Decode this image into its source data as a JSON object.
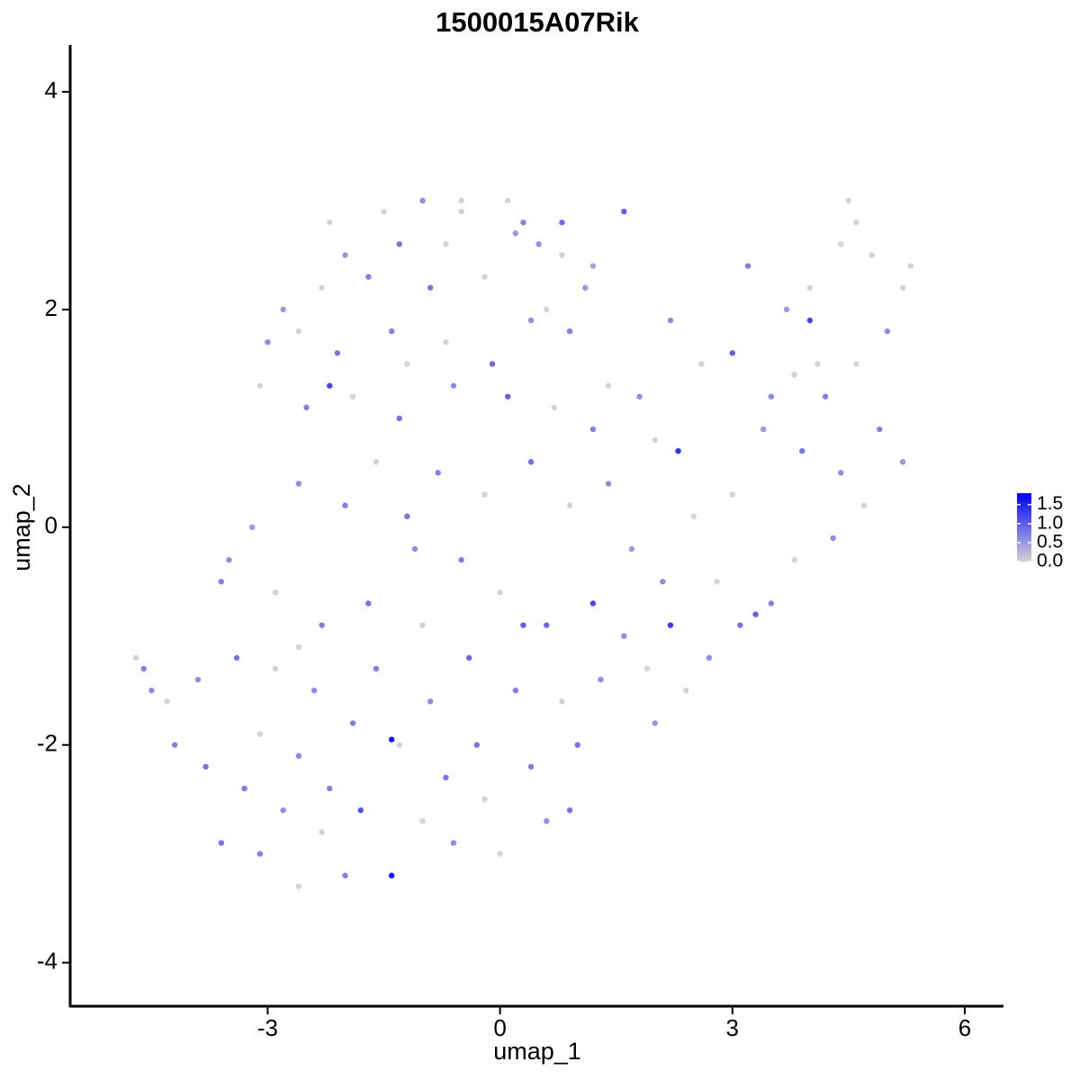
{
  "chart_data": {
    "type": "scatter",
    "title": "1500015A07Rik",
    "x_label": "umap_1",
    "y_label": "umap_2",
    "xlim": [
      -5.55,
      6.5
    ],
    "ylim": [
      -4.4,
      4.43
    ],
    "xticks": [
      -3,
      0,
      3,
      6
    ],
    "yticks": [
      -4,
      -2,
      0,
      2,
      4
    ],
    "color_low": "#d3d3d3",
    "color_high": "#0000ff",
    "clim": [
      0,
      1.8
    ],
    "colorbar_ticks": [
      {
        "value": 0,
        "label": "0.0"
      },
      {
        "value": 0.5,
        "label": "0.5"
      },
      {
        "value": 1,
        "label": "1.0"
      },
      {
        "value": 1.5,
        "label": "1.5"
      }
    ],
    "x": [
      -1.5,
      -1.0,
      -0.5,
      0.1,
      0.3,
      0.8,
      1.6,
      -2.2,
      -2.0,
      -1.3,
      -0.7,
      0.5,
      1.2,
      -2.8,
      -2.3,
      -1.7,
      -0.9,
      -0.2,
      0.6,
      1.1,
      -3.0,
      -2.6,
      -2.1,
      -1.4,
      -0.7,
      -0.1,
      0.4,
      0.9,
      1.4,
      1.8,
      -3.1,
      -2.5,
      -1.9,
      -1.3,
      -0.6,
      0.1,
      0.7,
      1.2,
      2.0,
      2.3,
      2.2,
      2.6,
      3.0,
      3.2,
      3.7,
      4.0,
      4.4,
      4.5,
      4.8,
      5.2,
      5.0,
      4.6,
      4.2,
      3.8,
      3.4,
      3.9,
      4.4,
      4.9,
      5.2,
      4.7,
      4.3,
      3.8,
      3.5,
      3.1,
      2.7,
      2.4,
      2.0,
      3.0,
      2.5,
      2.1,
      -0.8,
      -0.2,
      0.4,
      0.9,
      1.4,
      1.7,
      1.2,
      0.6,
      0.0,
      -0.5,
      -1.2,
      -1.6,
      -2.0,
      -2.6,
      -3.2,
      -3.5,
      -2.9,
      -2.3,
      -1.7,
      -1.0,
      -0.4,
      0.2,
      0.8,
      1.3,
      1.0,
      0.4,
      -0.2,
      -0.7,
      -1.3,
      -1.4,
      -1.9,
      -2.4,
      -2.9,
      -3.4,
      -3.9,
      -4.3,
      -4.6,
      -4.7,
      -4.5,
      -4.2,
      -3.8,
      -3.3,
      -2.8,
      -2.3,
      -2.0,
      -2.6,
      -3.1,
      -3.6,
      -1.4,
      -0.6,
      0.0,
      0.6,
      0.9,
      -1.0,
      -2.2,
      -2.6,
      -3.1,
      -1.8,
      -1.6,
      -0.9,
      0.3,
      -0.3,
      1.6,
      2.2,
      1.9,
      2.8,
      3.3,
      -3.6,
      -2.6,
      -1.1,
      -2.2,
      -1.2,
      0.8,
      -0.5,
      0.2,
      4.0,
      4.6,
      5.3,
      4.1,
      3.5
    ],
    "y": [
      2.9,
      3.0,
      2.9,
      3.0,
      2.8,
      2.8,
      2.9,
      2.8,
      2.5,
      2.6,
      2.6,
      2.6,
      2.4,
      2.0,
      2.2,
      2.3,
      2.2,
      2.3,
      2.0,
      2.2,
      1.7,
      1.8,
      1.6,
      1.8,
      1.7,
      1.5,
      1.9,
      1.8,
      1.3,
      1.2,
      1.3,
      1.1,
      1.2,
      1.0,
      1.3,
      1.2,
      1.1,
      0.9,
      0.8,
      0.7,
      1.9,
      1.5,
      1.6,
      2.4,
      2.0,
      2.2,
      2.6,
      3.0,
      2.5,
      2.2,
      1.8,
      1.5,
      1.2,
      1.4,
      0.9,
      0.7,
      0.5,
      0.9,
      0.6,
      0.2,
      -0.1,
      -0.3,
      -0.7,
      -0.9,
      -1.2,
      -1.5,
      -1.8,
      0.3,
      0.1,
      -0.5,
      0.5,
      0.3,
      0.6,
      0.2,
      0.4,
      -0.2,
      -0.7,
      -0.9,
      -0.6,
      -0.3,
      0.1,
      0.6,
      0.2,
      0.4,
      0.0,
      -0.3,
      -0.6,
      -0.9,
      -0.7,
      -0.9,
      -1.2,
      -1.5,
      -1.6,
      -1.4,
      -2.0,
      -2.2,
      -2.5,
      -2.3,
      -2.0,
      -1.95,
      -1.8,
      -1.5,
      -1.3,
      -1.2,
      -1.4,
      -1.6,
      -1.3,
      -1.2,
      -1.5,
      -2.0,
      -2.2,
      -2.4,
      -2.6,
      -2.8,
      -3.2,
      -3.3,
      -3.0,
      -2.9,
      -3.2,
      -2.9,
      -3.0,
      -2.7,
      -2.6,
      -2.7,
      -2.4,
      -2.1,
      -1.9,
      -2.6,
      -1.3,
      -1.6,
      -0.9,
      -2.0,
      -1.0,
      -0.9,
      -1.3,
      -0.5,
      -0.8,
      -0.5,
      -1.1,
      -0.2,
      1.3,
      1.5,
      2.5,
      3.0,
      2.7,
      1.9,
      2.8,
      2.4,
      1.5,
      1.2
    ],
    "values": [
      0,
      0.6,
      0,
      0,
      0.7,
      0.9,
      1.0,
      0,
      0.5,
      0.8,
      0,
      0.6,
      0.4,
      0.5,
      0,
      0.7,
      0.8,
      0,
      0,
      0.5,
      0.6,
      0,
      0.8,
      0.7,
      0,
      0.9,
      0.6,
      0.7,
      0,
      0.6,
      0,
      0.7,
      0,
      0.8,
      0.6,
      1.0,
      0,
      0.7,
      0,
      1.4,
      0.6,
      0,
      1.0,
      0.7,
      0.5,
      0,
      0,
      0,
      0,
      0,
      0.6,
      0,
      0.7,
      0,
      0.5,
      0.8,
      0.6,
      0.7,
      0.5,
      0,
      0.6,
      0,
      0.7,
      0.8,
      0.6,
      0,
      0.5,
      0,
      0,
      0.6,
      0.7,
      0,
      0.8,
      0,
      0.6,
      0.5,
      1.2,
      0.9,
      0,
      0.7,
      0.8,
      0,
      0.7,
      0.6,
      0.5,
      0.6,
      0,
      0.7,
      0.8,
      0,
      0.9,
      0.7,
      0,
      0.6,
      0.8,
      0.7,
      0,
      0.8,
      0,
      1.6,
      0.7,
      0.6,
      0,
      0.8,
      0.6,
      0,
      0.7,
      0,
      0.6,
      0.7,
      0.8,
      0.7,
      0.6,
      0,
      0.7,
      0,
      0.7,
      0.8,
      1.6,
      0.6,
      0,
      0.6,
      0.8,
      0,
      0.7,
      0.6,
      0,
      1.1,
      0.7,
      0.6,
      1.0,
      0.8,
      0.6,
      1.3,
      0,
      0,
      1.0,
      0.7,
      0,
      0.6,
      1.2,
      0,
      0,
      0,
      0.5,
      1.2,
      0,
      0,
      0,
      0.6
    ]
  }
}
